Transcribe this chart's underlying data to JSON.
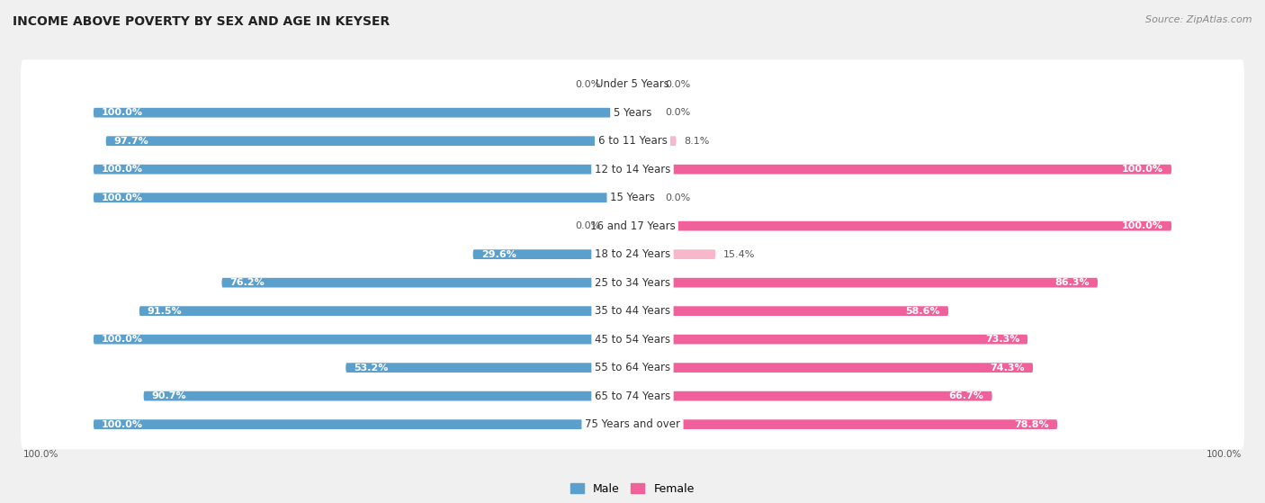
{
  "title": "INCOME ABOVE POVERTY BY SEX AND AGE IN KEYSER",
  "source": "Source: ZipAtlas.com",
  "categories": [
    "Under 5 Years",
    "5 Years",
    "6 to 11 Years",
    "12 to 14 Years",
    "15 Years",
    "16 and 17 Years",
    "18 to 24 Years",
    "25 to 34 Years",
    "35 to 44 Years",
    "45 to 54 Years",
    "55 to 64 Years",
    "65 to 74 Years",
    "75 Years and over"
  ],
  "male": [
    0.0,
    100.0,
    97.7,
    100.0,
    100.0,
    0.0,
    29.6,
    76.2,
    91.5,
    100.0,
    53.2,
    90.7,
    100.0
  ],
  "female": [
    0.0,
    0.0,
    8.1,
    100.0,
    0.0,
    100.0,
    15.4,
    86.3,
    58.6,
    73.3,
    74.3,
    66.7,
    78.8
  ],
  "male_color_light": "#aecde8",
  "male_color_dark": "#5b9fcc",
  "female_color_light": "#f7b8cb",
  "female_color_dark": "#f0609a",
  "bg_color": "#f0f0f0",
  "row_bg": "#ffffff",
  "label_bg": "#ffffff",
  "title_fontsize": 10,
  "label_fontsize": 8.0,
  "cat_fontsize": 8.5,
  "legend_fontsize": 9,
  "value_threshold": 20
}
